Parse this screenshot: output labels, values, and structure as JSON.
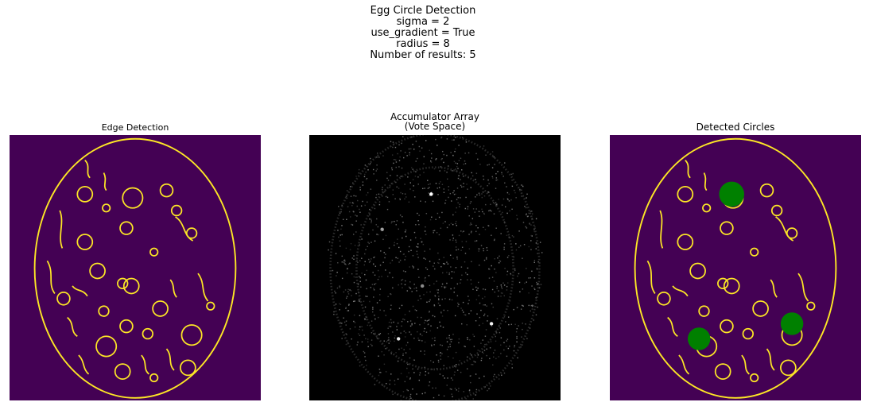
{
  "figure": {
    "suptitle_lines": [
      "Egg Circle Detection",
      "sigma = 2",
      "use_gradient = True",
      "radius = 8",
      "Number of results: 5"
    ]
  },
  "panels": [
    {
      "title_lines": [
        "Edge Detection"
      ]
    },
    {
      "title_lines": [
        "Accumulator Array",
        "(Vote Space)"
      ]
    },
    {
      "title_lines": [
        "Detected Circles"
      ]
    }
  ],
  "colors": {
    "edge_background": "#440154",
    "edge_line": "#fde725",
    "accumulator_background": "#000000",
    "accumulator_vote": "#ffffff",
    "detection_fill": "#008000"
  },
  "chart_data": [
    {
      "type": "heatmap",
      "title": "Edge Detection",
      "colormap": "viridis",
      "axes": "off",
      "egg_outline": {
        "cx": 100,
        "cy": 106,
        "rx": 80,
        "ry": 103
      },
      "edge_circles": [
        {
          "cx": 60,
          "cy": 47,
          "r": 6
        },
        {
          "cx": 98,
          "cy": 50,
          "r": 8
        },
        {
          "cx": 125,
          "cy": 44,
          "r": 5
        },
        {
          "cx": 133,
          "cy": 60,
          "r": 4
        },
        {
          "cx": 77,
          "cy": 58,
          "r": 3
        },
        {
          "cx": 93,
          "cy": 74,
          "r": 5
        },
        {
          "cx": 60,
          "cy": 85,
          "r": 6
        },
        {
          "cx": 115,
          "cy": 93,
          "r": 3
        },
        {
          "cx": 145,
          "cy": 78,
          "r": 4
        },
        {
          "cx": 70,
          "cy": 108,
          "r": 6
        },
        {
          "cx": 90,
          "cy": 118,
          "r": 4
        },
        {
          "cx": 97,
          "cy": 120,
          "r": 6
        },
        {
          "cx": 43,
          "cy": 130,
          "r": 5
        },
        {
          "cx": 75,
          "cy": 140,
          "r": 4
        },
        {
          "cx": 120,
          "cy": 138,
          "r": 6
        },
        {
          "cx": 93,
          "cy": 152,
          "r": 5
        },
        {
          "cx": 145,
          "cy": 159,
          "r": 8
        },
        {
          "cx": 77,
          "cy": 168,
          "r": 8
        },
        {
          "cx": 110,
          "cy": 158,
          "r": 4
        },
        {
          "cx": 142,
          "cy": 185,
          "r": 6
        },
        {
          "cx": 90,
          "cy": 188,
          "r": 6
        },
        {
          "cx": 115,
          "cy": 193,
          "r": 3
        },
        {
          "cx": 160,
          "cy": 136,
          "r": 3
        }
      ],
      "edge_strokes": [
        "M 60 20 C 65 25 60 30 64 34",
        "M 75 30 C 78 36 74 40 77 44",
        "M 40 60 C 44 70 38 80 42 90",
        "M 30 100 C 36 110 30 118 36 126",
        "M 50 120 C 54 125 58 122 62 128",
        "M 132 65 C 140 70 138 80 146 84",
        "M 150 110 C 156 118 152 125 158 132",
        "M 55 175 C 60 180 58 186 63 190",
        "M 125 170 C 130 176 126 182 131 187",
        "M 105 175 C 110 181 106 186 111 190",
        "M 128 115 C 132 120 129 124 133 129",
        "M 46 145 C 52 150 48 156 54 160"
      ]
    },
    {
      "type": "heatmap",
      "title": "Accumulator Array\n(Vote Space)",
      "colormap": "gray",
      "axes": "off",
      "peaks": [
        {
          "x": 97,
          "y": 47,
          "strength": 1.0
        },
        {
          "x": 145,
          "y": 150,
          "strength": 0.95
        },
        {
          "x": 71,
          "y": 162,
          "strength": 0.9
        },
        {
          "x": 58,
          "y": 75,
          "strength": 0.6
        },
        {
          "x": 90,
          "y": 120,
          "strength": 0.55
        }
      ]
    },
    {
      "type": "scatter",
      "title": "Detected Circles",
      "axes": "off",
      "background": "Edge Detection",
      "detections": [
        {
          "x": 97,
          "y": 47,
          "r": 10
        },
        {
          "x": 145,
          "y": 150,
          "r": 9
        },
        {
          "x": 71,
          "y": 162,
          "r": 9
        }
      ]
    }
  ]
}
